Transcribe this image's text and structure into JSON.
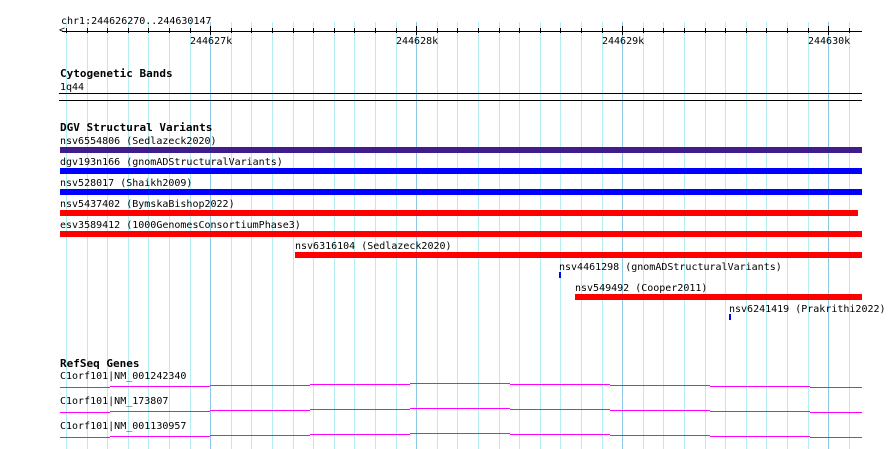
{
  "location": "chr1:244626270..244630147",
  "ruler": {
    "labels": [
      "244627k",
      "244628k",
      "244629k",
      "244630k"
    ]
  },
  "tracks": {
    "cytoband": {
      "title": "Cytogenetic Bands",
      "band": "1q44"
    },
    "dgv": {
      "title": "DGV Structural Variants",
      "features": [
        {
          "label": "nsv6554806 (Sedlazeck2020)",
          "color": "#3f1d8c"
        },
        {
          "label": "dgv193n166 (gnomADStructuralVariants)",
          "color": "#0000ff"
        },
        {
          "label": "nsv528017 (Shaikh2009)",
          "color": "#0000ff"
        },
        {
          "label": "nsv5437402 (BymskaBishop2022)",
          "color": "#ff0000"
        },
        {
          "label": "esv3589412 (1000GenomesConsortiumPhase3)",
          "color": "#ff0000"
        },
        {
          "label": "nsv6316104 (Sedlazeck2020)",
          "color": "#ff0000"
        },
        {
          "label": "nsv4461298 (gnomADStructuralVariants)",
          "color": "#0000ff"
        },
        {
          "label": "nsv549492 (Cooper2011)",
          "color": "#ff0000"
        },
        {
          "label": "nsv6241419 (Prakrithi2022)",
          "color": "#0000ff"
        }
      ]
    },
    "refseq": {
      "title": "RefSeq Genes",
      "color": "#ff00ff",
      "genes": [
        {
          "label": "C1orf101|NM_001242340"
        },
        {
          "label": "C1orf101|NM_173807"
        },
        {
          "label": "C1orf101|NM_001130957"
        }
      ]
    }
  }
}
